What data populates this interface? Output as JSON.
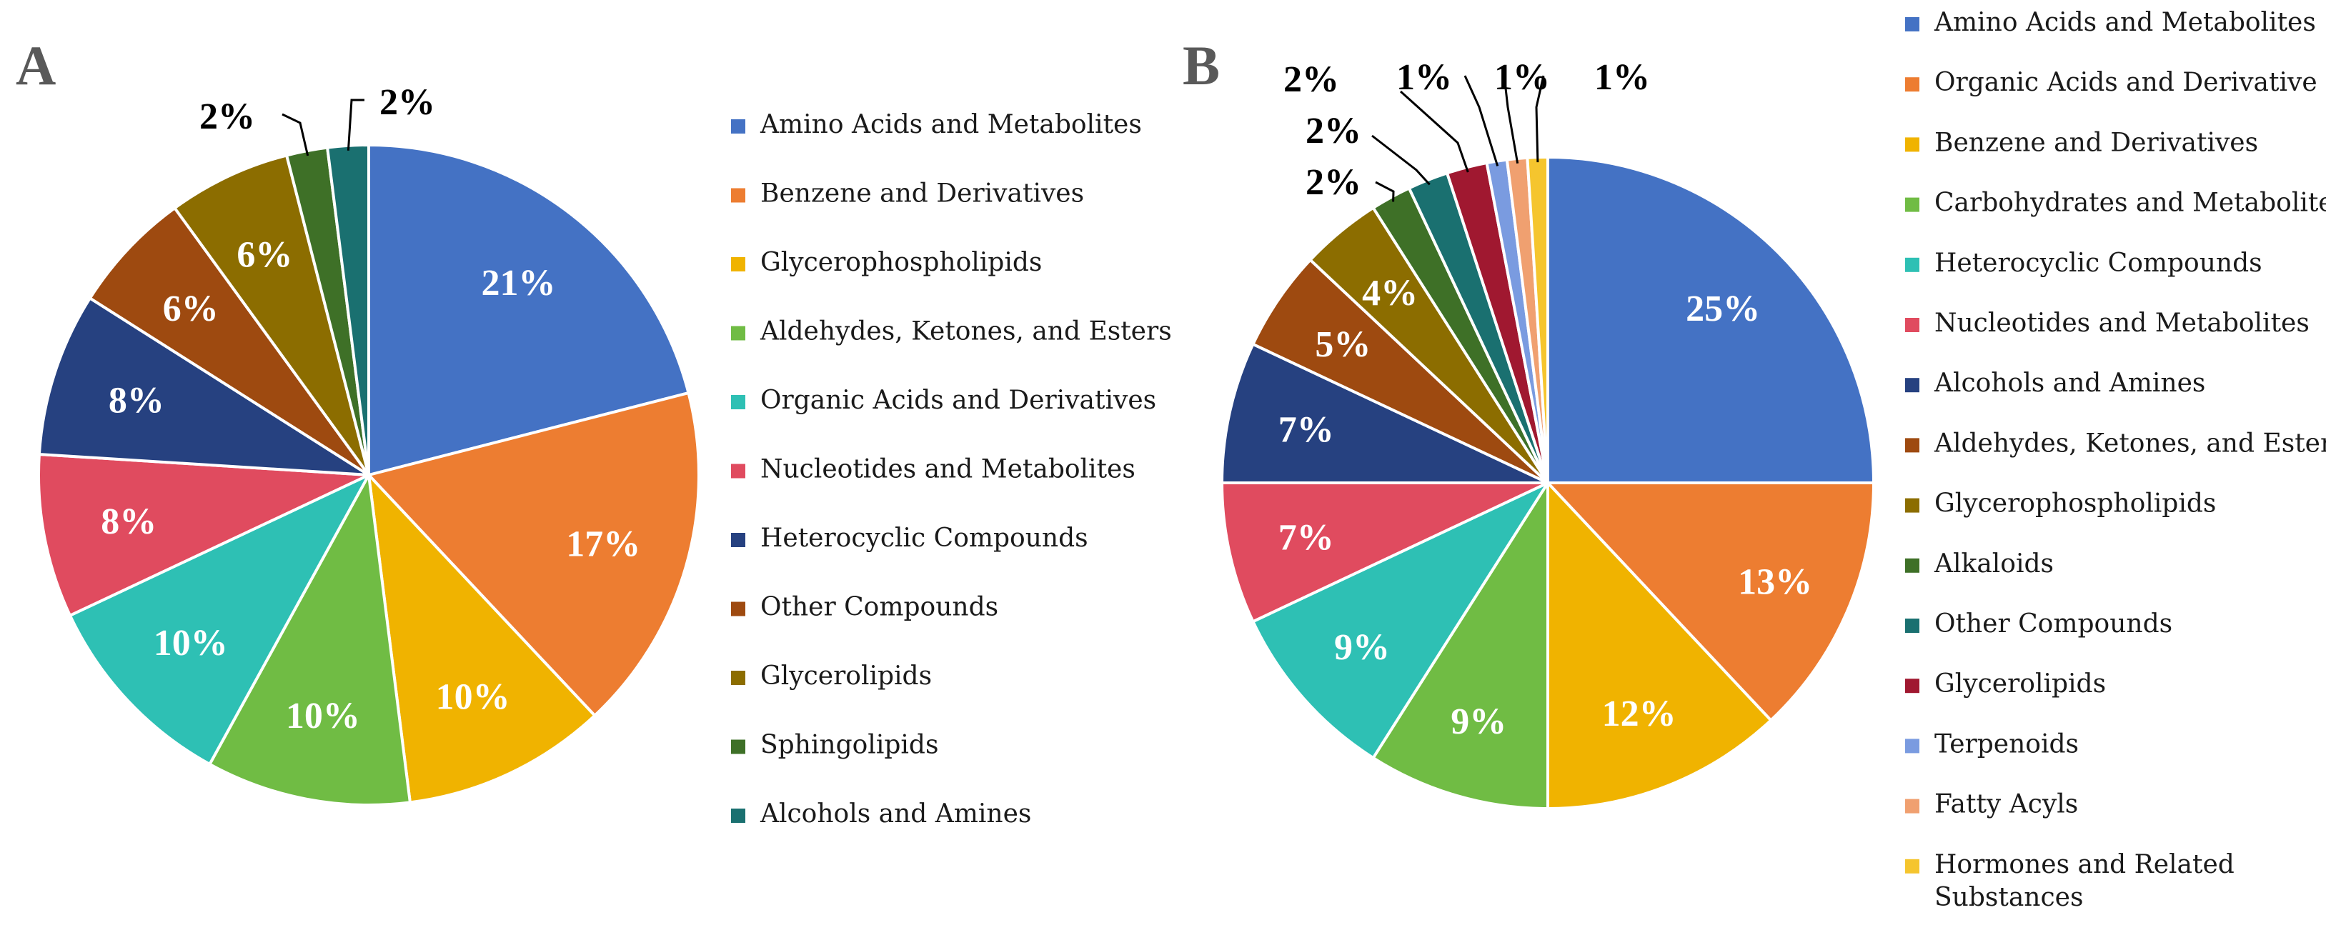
{
  "chart_data": [
    {
      "type": "pie",
      "panel_label": "A",
      "start": "12 o'clock, clockwise",
      "slices": [
        {
          "label": "Amino Acids and Metabolites",
          "value": 21,
          "display": "21%",
          "color": "#4472C4"
        },
        {
          "label": "Benzene and Derivatives",
          "value": 17,
          "display": "17%",
          "color": "#ED7D31"
        },
        {
          "label": "Glycerophospholipids",
          "value": 10,
          "display": "10%",
          "color": "#F0B300"
        },
        {
          "label": "Aldehydes, Ketones, and Esters",
          "value": 10,
          "display": "10%",
          "color": "#70BC44"
        },
        {
          "label": "Organic Acids and Derivatives",
          "value": 10,
          "display": "10%",
          "color": "#2EC0B4"
        },
        {
          "label": "Nucleotides and Metabolites",
          "value": 8,
          "display": "8%",
          "color": "#E04B5F"
        },
        {
          "label": "Heterocyclic Compounds",
          "value": 8,
          "display": "8%",
          "color": "#264180"
        },
        {
          "label": "Other Compounds",
          "value": 6,
          "display": "6%",
          "color": "#9E4A10"
        },
        {
          "label": "Glycerolipids",
          "value": 6,
          "display": "6%",
          "color": "#8C6D00"
        },
        {
          "label": "Sphingolipids",
          "value": 2,
          "display": "2%",
          "color": "#3E7027"
        },
        {
          "label": "Alcohols and Amines",
          "value": 2,
          "display": "2%",
          "color": "#1A7070"
        }
      ]
    },
    {
      "type": "pie",
      "panel_label": "B",
      "start": "12 o'clock, clockwise",
      "slices": [
        {
          "label": "Amino Acids and Metabolites",
          "value": 25,
          "display": "25%",
          "color": "#4472C4"
        },
        {
          "label": "Organic Acids and Derivative",
          "value": 13,
          "display": "13%",
          "color": "#ED7D31"
        },
        {
          "label": "Benzene and Derivatives",
          "value": 12,
          "display": "12%",
          "color": "#F0B300"
        },
        {
          "label": "Carbohydrates and Metabolites",
          "value": 9,
          "display": "9%",
          "color": "#70BC44"
        },
        {
          "label": "Heterocyclic Compounds",
          "value": 9,
          "display": "9%",
          "color": "#2EC0B4"
        },
        {
          "label": "Nucleotides and Metabolites",
          "value": 7,
          "display": "7%",
          "color": "#E04B5F"
        },
        {
          "label": "Alcohols and Amines",
          "value": 7,
          "display": "7%",
          "color": "#264180"
        },
        {
          "label": "Aldehydes, Ketones, and Esters",
          "value": 5,
          "display": "5%",
          "color": "#9E4A10"
        },
        {
          "label": "Glycerophospholipids",
          "value": 4,
          "display": "4%",
          "color": "#8C6D00"
        },
        {
          "label": "Alkaloids",
          "value": 2,
          "display": "2%",
          "color": "#3E7027"
        },
        {
          "label": "Other Compounds",
          "value": 2,
          "display": "2%",
          "color": "#1A7070"
        },
        {
          "label": "Glycerolipids",
          "value": 2,
          "display": "2%",
          "color": "#A01830"
        },
        {
          "label": "Terpenoids",
          "value": 1,
          "display": "1%",
          "color": "#7A9BE0"
        },
        {
          "label": "Fatty Acyls",
          "value": 1,
          "display": "1%",
          "color": "#F0A070"
        },
        {
          "label": "Hormones and Related Substances",
          "value": 1,
          "display": "1%",
          "color": "#F5C52E"
        }
      ]
    }
  ]
}
